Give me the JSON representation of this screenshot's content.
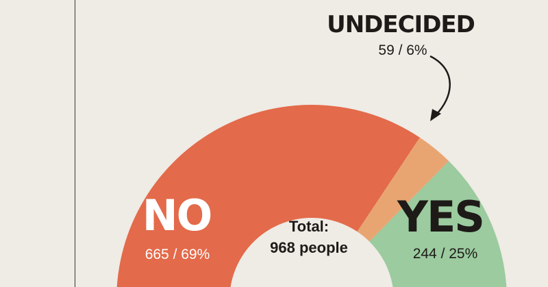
{
  "chart_data": {
    "type": "pie",
    "variant": "semicircle-donut",
    "total": 968,
    "total_label": "Total:",
    "total_value": "968 people",
    "slices": [
      {
        "label": "NO",
        "value": 665,
        "percent": 69,
        "value_text": "665 / 69%",
        "color": "#e36a4a"
      },
      {
        "label": "UNDECIDED",
        "value": 59,
        "percent": 6,
        "value_text": "59 / 6%",
        "color": "#e8a572"
      },
      {
        "label": "YES",
        "value": 244,
        "percent": 25,
        "value_text": "244 / 25%",
        "color": "#9bcb9f"
      }
    ]
  },
  "colors": {
    "background": "#efebe5",
    "text": "#1e1a18",
    "label_light": "#ffffff",
    "divider": "#3a3330"
  }
}
